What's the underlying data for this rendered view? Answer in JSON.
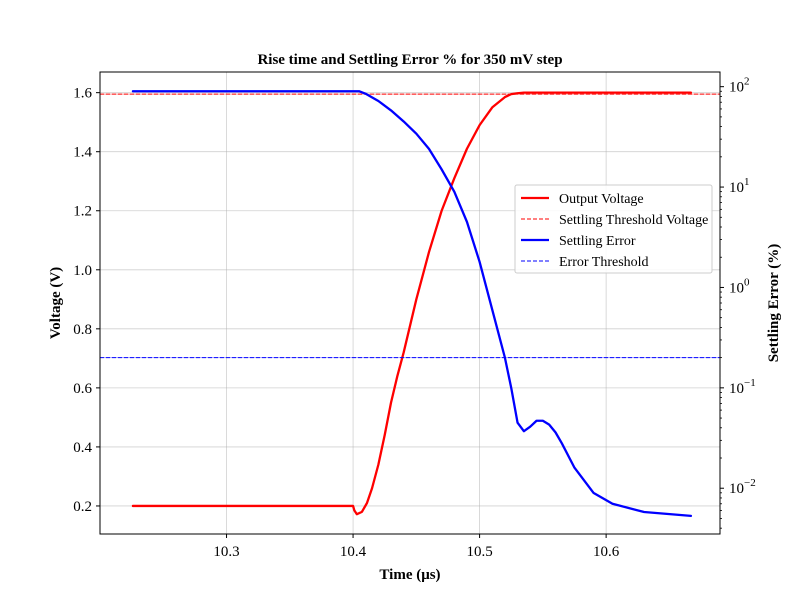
{
  "chart_data": {
    "type": "line",
    "title": "Rise time and Settling Error % for 350 mV step",
    "xlabel": "Time (μs)",
    "ylabel_left": "Voltage (V)",
    "ylabel_right": "Settling Error (%)",
    "xlim": [
      10.2,
      10.69
    ],
    "ylim_left": [
      0.105,
      1.67
    ],
    "ylim_right_log": [
      0.0035,
      140
    ],
    "x_ticks": [
      10.3,
      10.4,
      10.5,
      10.6
    ],
    "x_tick_labels": [
      "10.3",
      "10.4",
      "10.5",
      "10.6"
    ],
    "y_left_ticks": [
      0.2,
      0.4,
      0.6,
      0.8,
      1.0,
      1.2,
      1.4,
      1.6
    ],
    "y_left_tick_labels": [
      "0.2",
      "0.4",
      "0.6",
      "0.8",
      "1.0",
      "1.2",
      "1.4",
      "1.6"
    ],
    "y_right_ticks": [
      0.01,
      0.1,
      1,
      10,
      100
    ],
    "y_right_tick_labels": [
      {
        "base": "10",
        "exp": "−2"
      },
      {
        "base": "10",
        "exp": "−1"
      },
      {
        "base": "10",
        "exp": "0"
      },
      {
        "base": "10",
        "exp": "1"
      },
      {
        "base": "10",
        "exp": "2"
      }
    ],
    "grid": true,
    "legend_position": "center-right",
    "series": [
      {
        "name": "Output Voltage",
        "axis": "left",
        "color": "#ff0000",
        "style": "solid",
        "x": [
          10.226,
          10.3,
          10.4,
          10.401,
          10.403,
          10.407,
          10.411,
          10.415,
          10.42,
          10.425,
          10.43,
          10.435,
          10.44,
          10.45,
          10.46,
          10.47,
          10.48,
          10.49,
          10.5,
          10.51,
          10.52,
          10.525,
          10.53,
          10.535,
          10.55,
          10.6,
          10.667
        ],
        "y": [
          0.2,
          0.2,
          0.2,
          0.185,
          0.172,
          0.18,
          0.21,
          0.26,
          0.34,
          0.44,
          0.55,
          0.64,
          0.72,
          0.9,
          1.06,
          1.2,
          1.31,
          1.41,
          1.49,
          1.55,
          1.585,
          1.595,
          1.598,
          1.6,
          1.6,
          1.6,
          1.6
        ]
      },
      {
        "name": "Settling Threshold Voltage",
        "axis": "left",
        "color": "#ff0000",
        "style": "dashed",
        "x": [
          10.2,
          10.69
        ],
        "y": [
          1.595,
          1.595
        ]
      },
      {
        "name": "Settling Error",
        "axis": "right",
        "color": "#0000ff",
        "style": "solid",
        "x": [
          10.226,
          10.3,
          10.4,
          10.405,
          10.41,
          10.42,
          10.43,
          10.44,
          10.45,
          10.46,
          10.47,
          10.48,
          10.49,
          10.5,
          10.51,
          10.52,
          10.525,
          10.53,
          10.535,
          10.54,
          10.545,
          10.55,
          10.555,
          10.56,
          10.565,
          10.575,
          10.59,
          10.605,
          10.63,
          10.667
        ],
        "y": [
          90,
          90,
          90,
          90,
          85,
          72,
          58,
          45,
          34,
          24,
          15,
          9,
          4.5,
          1.8,
          0.6,
          0.2,
          0.1,
          0.045,
          0.037,
          0.041,
          0.047,
          0.047,
          0.043,
          0.036,
          0.028,
          0.016,
          0.009,
          0.007,
          0.0058,
          0.0053
        ]
      },
      {
        "name": "Error Threshold",
        "axis": "right",
        "color": "#0000ff",
        "style": "dashed",
        "x": [
          10.2,
          10.69
        ],
        "y": [
          0.2,
          0.2
        ]
      }
    ]
  }
}
